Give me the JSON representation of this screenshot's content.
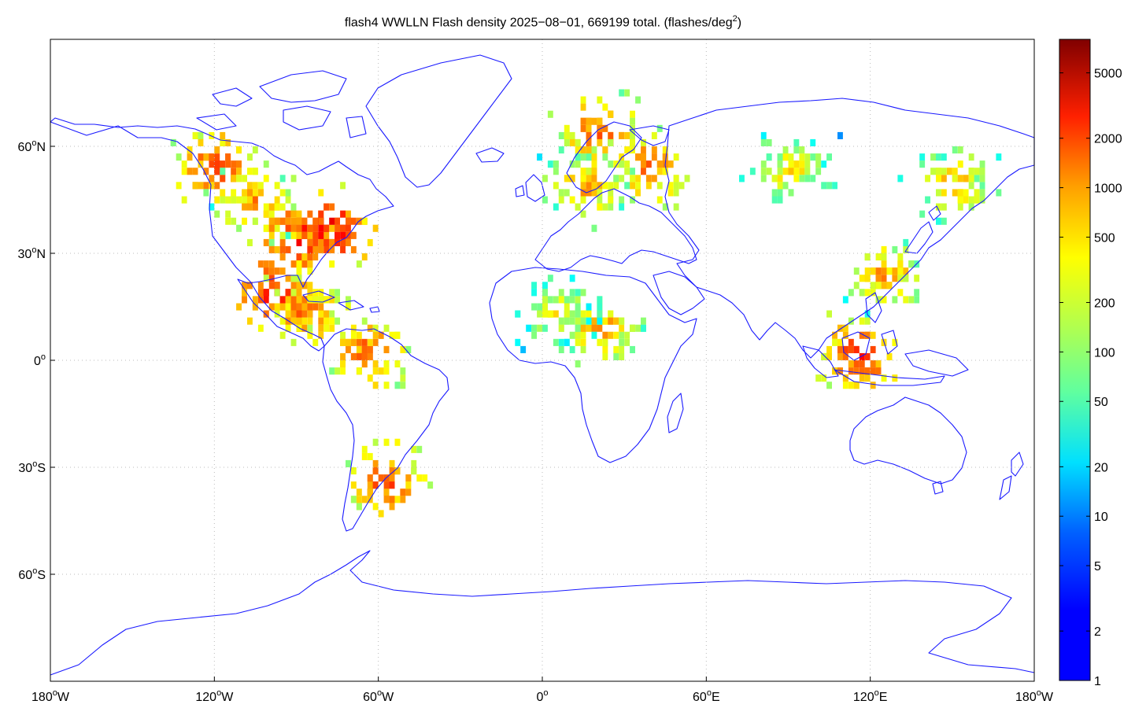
{
  "title": {
    "main": "flash4 WWLLN Flash density 2025−08−01, 669199 total. (flashes/deg",
    "sup": "2",
    "close": ")"
  },
  "map": {
    "projection": "equirectangular",
    "lon_range": [
      -180,
      180
    ],
    "lat_range": [
      -90,
      90
    ],
    "grid": "dotted",
    "coastline_color": "#1a1aff",
    "x_ticks": [
      {
        "lon": -180,
        "num": "180",
        "deg": "o",
        "hem": "W"
      },
      {
        "lon": -120,
        "num": "120",
        "deg": "o",
        "hem": "W"
      },
      {
        "lon": -60,
        "num": "60",
        "deg": "o",
        "hem": "W"
      },
      {
        "lon": 0,
        "num": "0",
        "deg": "o",
        "hem": ""
      },
      {
        "lon": 60,
        "num": "60",
        "deg": "o",
        "hem": "E"
      },
      {
        "lon": 120,
        "num": "120",
        "deg": "o",
        "hem": "E"
      },
      {
        "lon": 180,
        "num": "180",
        "deg": "o",
        "hem": "W"
      }
    ],
    "y_ticks": [
      {
        "lat": 60,
        "num": "60",
        "deg": "o",
        "hem": "N"
      },
      {
        "lat": 30,
        "num": "30",
        "deg": "o",
        "hem": "N"
      },
      {
        "lat": 0,
        "num": "0",
        "deg": "o",
        "hem": ""
      },
      {
        "lat": -30,
        "num": "30",
        "deg": "o",
        "hem": "S"
      },
      {
        "lat": -60,
        "num": "60",
        "deg": "o",
        "hem": "S"
      }
    ]
  },
  "colorbar": {
    "scale": "log",
    "range": [
      1,
      8000
    ],
    "colormap": "jet",
    "ticks": [
      "1",
      "2",
      "5",
      "10",
      "20",
      "50",
      "100",
      "200",
      "500",
      "1000",
      "2000",
      "5000"
    ]
  },
  "chart_data": {
    "type": "heatmap",
    "variable": "flash density",
    "units": "flashes/deg^2",
    "date": "2025-08-01",
    "total": 669199,
    "clusters": [
      {
        "lon": -120,
        "lat": 55,
        "peak": 2000
      },
      {
        "lon": -105,
        "lat": 45,
        "peak": 1000
      },
      {
        "lon": -90,
        "lat": 35,
        "peak": 3000
      },
      {
        "lon": -78,
        "lat": 38,
        "peak": 4000
      },
      {
        "lon": -100,
        "lat": 20,
        "peak": 3000
      },
      {
        "lon": -88,
        "lat": 14,
        "peak": 1500
      },
      {
        "lon": -65,
        "lat": 3,
        "peak": 1500
      },
      {
        "lon": -58,
        "lat": -33,
        "peak": 2000
      },
      {
        "lon": 20,
        "lat": 65,
        "peak": 1500
      },
      {
        "lon": 38,
        "lat": 55,
        "peak": 1200
      },
      {
        "lon": 15,
        "lat": 50,
        "peak": 800
      },
      {
        "lon": 20,
        "lat": 10,
        "peak": 800
      },
      {
        "lon": 5,
        "lat": 15,
        "peak": 300
      },
      {
        "lon": 115,
        "lat": 2,
        "peak": 2500
      },
      {
        "lon": 125,
        "lat": 25,
        "peak": 800
      },
      {
        "lon": 150,
        "lat": 50,
        "peak": 600
      },
      {
        "lon": 90,
        "lat": 55,
        "peak": 400
      }
    ]
  }
}
